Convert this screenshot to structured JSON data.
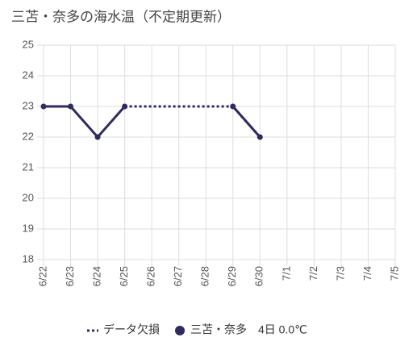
{
  "chart_data": {
    "type": "line",
    "title": "三苫・奈多の海水温（不定期更新）",
    "categories": [
      "6/22",
      "6/23",
      "6/24",
      "6/25",
      "6/26",
      "6/27",
      "6/28",
      "6/29",
      "6/30",
      "7/1",
      "7/2",
      "7/3",
      "7/4",
      "7/5"
    ],
    "series": [
      {
        "name": "データ欠損",
        "color": "#2e2b5f",
        "style": "dotted",
        "values": [
          null,
          null,
          null,
          23,
          23,
          23,
          23,
          23,
          22,
          null,
          null,
          null,
          null,
          null
        ]
      },
      {
        "name": "三苫・奈多　4日 0.0℃",
        "color": "#2e2b5f",
        "style": "solid",
        "values": [
          23,
          23,
          22,
          23,
          null,
          null,
          null,
          23,
          22,
          null,
          null,
          null,
          null,
          null
        ]
      }
    ],
    "ylim": [
      18,
      25
    ],
    "yticks": [
      18,
      19,
      20,
      21,
      22,
      23,
      24,
      25
    ],
    "grid": true,
    "legend": "bottom"
  }
}
